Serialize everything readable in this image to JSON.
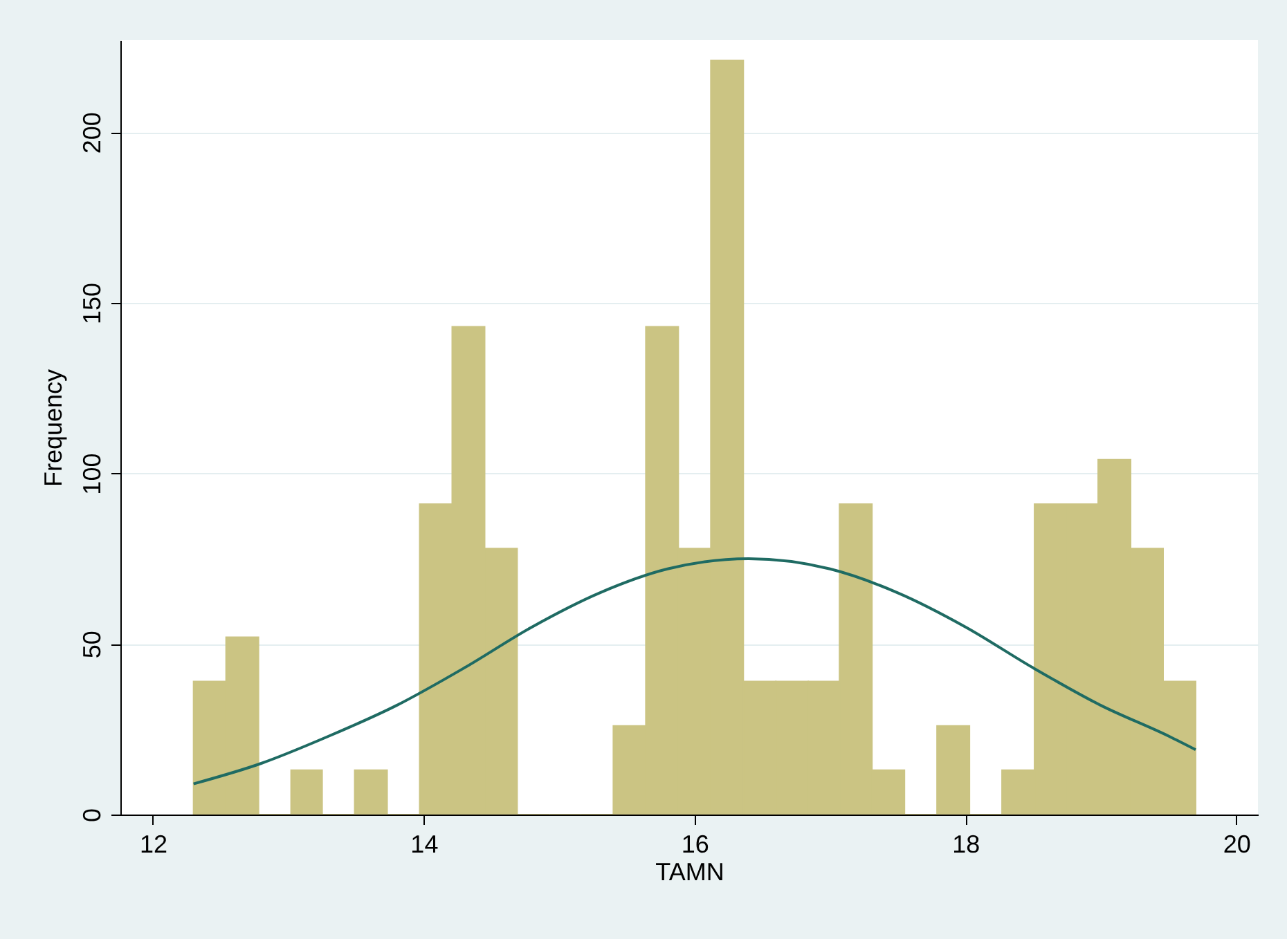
{
  "chart_data": {
    "type": "histogram",
    "xlabel": "TAMN",
    "ylabel": "Frequency",
    "bins": [
      12.3,
      12.54,
      12.78,
      13.02,
      13.25,
      13.49,
      13.73,
      13.97,
      14.21,
      14.45,
      14.69,
      14.93,
      15.16,
      15.4,
      15.64,
      15.88,
      16.12,
      16.36,
      16.6,
      16.84,
      17.07,
      17.31,
      17.55,
      17.79,
      18.03,
      18.27,
      18.51,
      18.75,
      18.98,
      19.22,
      19.46,
      19.7
    ],
    "series": [
      {
        "color": "#cbc483",
        "values": [
          39,
          52,
          0,
          13,
          0,
          13,
          0,
          91,
          143,
          78,
          0,
          0,
          0,
          26,
          143,
          78,
          221,
          39,
          39,
          39,
          91,
          13,
          0,
          26,
          0,
          13,
          91,
          91,
          104,
          78,
          39
        ]
      },
      {
        "type": "line",
        "color": "#1f6b63",
        "x": [
          12.3,
          12.8,
          13.3,
          13.8,
          14.3,
          14.8,
          15.3,
          15.8,
          16.4,
          17.0,
          17.5,
          18.0,
          18.5,
          19.0,
          19.5,
          19.7
        ],
        "values": [
          9,
          15,
          23,
          32,
          43,
          55,
          65,
          72,
          75,
          72,
          65,
          55,
          43,
          32,
          23,
          19
        ]
      }
    ],
    "xlim": [
      11.76,
      20.16
    ],
    "xticks": [
      12,
      14,
      16,
      18,
      20
    ],
    "ylim": [
      0,
      227
    ],
    "yticks": [
      0,
      50,
      100,
      150,
      200
    ],
    "grid": "y",
    "legend": false
  }
}
